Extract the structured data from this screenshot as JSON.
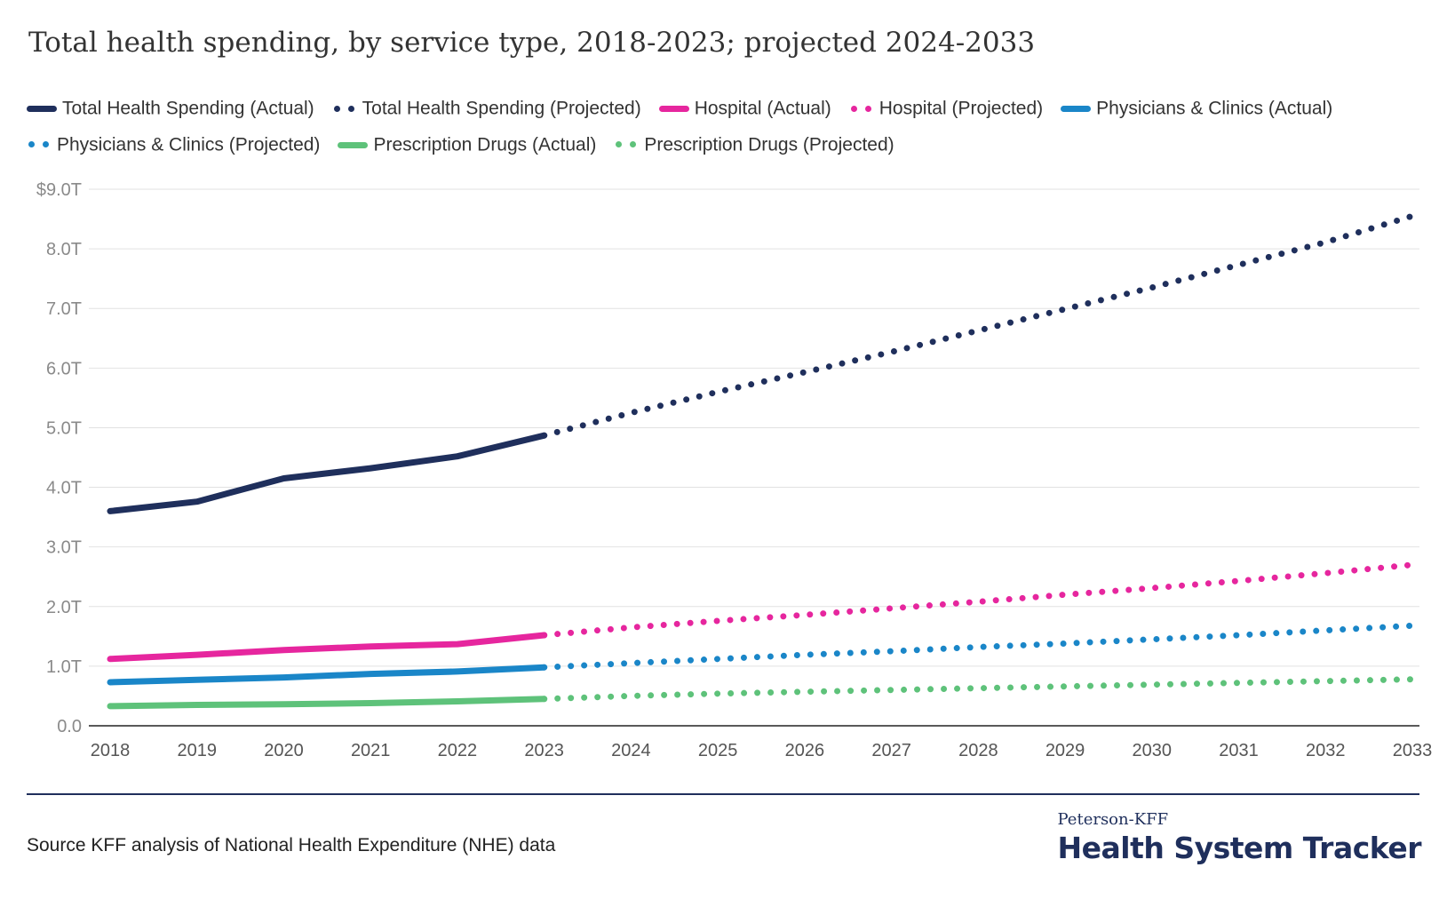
{
  "chart_data": {
    "type": "line",
    "title": "Total health spending, by service type, 2018-2023; projected 2024-2033",
    "x": [
      "2018",
      "2019",
      "2020",
      "2021",
      "2022",
      "2023",
      "2024",
      "2025",
      "2026",
      "2027",
      "2028",
      "2029",
      "2030",
      "2031",
      "2032",
      "2033"
    ],
    "y_ticks": [
      "0.0",
      "1.0T",
      "2.0T",
      "3.0T",
      "4.0T",
      "5.0T",
      "6.0T",
      "7.0T",
      "8.0T",
      "$9.0T"
    ],
    "ylim": [
      0,
      9
    ],
    "grid": true,
    "legend_position": "top",
    "series": [
      {
        "name": "Total Health Spending (Actual)",
        "color": "#1f2f5c",
        "style": "solid",
        "x": [
          "2018",
          "2019",
          "2020",
          "2021",
          "2022",
          "2023"
        ],
        "values": [
          3.6,
          3.76,
          4.15,
          4.32,
          4.52,
          4.87
        ]
      },
      {
        "name": "Total Health Spending (Projected)",
        "color": "#1f2f5c",
        "style": "dotted",
        "x": [
          "2023",
          "2024",
          "2025",
          "2026",
          "2027",
          "2028",
          "2029",
          "2030",
          "2031",
          "2032",
          "2033"
        ],
        "values": [
          4.87,
          5.25,
          5.6,
          5.93,
          6.27,
          6.63,
          6.99,
          7.35,
          7.73,
          8.11,
          8.55
        ]
      },
      {
        "name": "Hospital (Actual)",
        "color": "#e6269e",
        "style": "solid",
        "x": [
          "2018",
          "2019",
          "2020",
          "2021",
          "2022",
          "2023"
        ],
        "values": [
          1.12,
          1.19,
          1.27,
          1.33,
          1.37,
          1.52
        ]
      },
      {
        "name": "Hospital (Projected)",
        "color": "#e6269e",
        "style": "dotted",
        "x": [
          "2023",
          "2024",
          "2025",
          "2026",
          "2027",
          "2028",
          "2029",
          "2030",
          "2031",
          "2032",
          "2033"
        ],
        "values": [
          1.52,
          1.65,
          1.76,
          1.86,
          1.97,
          2.08,
          2.2,
          2.31,
          2.43,
          2.56,
          2.7
        ]
      },
      {
        "name": "Physicians & Clinics (Actual)",
        "color": "#1a86c8",
        "style": "solid",
        "x": [
          "2018",
          "2019",
          "2020",
          "2021",
          "2022",
          "2023"
        ],
        "values": [
          0.73,
          0.77,
          0.81,
          0.87,
          0.91,
          0.98
        ]
      },
      {
        "name": "Physicians & Clinics (Projected)",
        "color": "#1a86c8",
        "style": "dotted",
        "x": [
          "2023",
          "2024",
          "2025",
          "2026",
          "2027",
          "2028",
          "2029",
          "2030",
          "2031",
          "2032",
          "2033"
        ],
        "values": [
          0.98,
          1.05,
          1.12,
          1.19,
          1.25,
          1.32,
          1.38,
          1.45,
          1.52,
          1.6,
          1.68
        ]
      },
      {
        "name": "Prescription Drugs (Actual)",
        "color": "#5ec27a",
        "style": "solid",
        "x": [
          "2018",
          "2019",
          "2020",
          "2021",
          "2022",
          "2023"
        ],
        "values": [
          0.33,
          0.35,
          0.36,
          0.38,
          0.41,
          0.45
        ]
      },
      {
        "name": "Prescription Drugs (Projected)",
        "color": "#5ec27a",
        "style": "dotted",
        "x": [
          "2023",
          "2024",
          "2025",
          "2026",
          "2027",
          "2028",
          "2029",
          "2030",
          "2031",
          "2032",
          "2033"
        ],
        "values": [
          0.45,
          0.5,
          0.54,
          0.57,
          0.6,
          0.63,
          0.66,
          0.69,
          0.72,
          0.75,
          0.78
        ]
      }
    ]
  },
  "legend": [
    {
      "label": "Total Health Spending (Actual)",
      "color": "#1f2f5c",
      "style": "solid"
    },
    {
      "label": "Total Health Spending (Projected)",
      "color": "#1f2f5c",
      "style": "dotted"
    },
    {
      "label": "Hospital (Actual)",
      "color": "#e6269e",
      "style": "solid"
    },
    {
      "label": "Hospital (Projected)",
      "color": "#e6269e",
      "style": "dotted"
    },
    {
      "label": "Physicians & Clinics (Actual)",
      "color": "#1a86c8",
      "style": "solid"
    },
    {
      "label": "Physicians & Clinics (Projected)",
      "color": "#1a86c8",
      "style": "dotted"
    },
    {
      "label": "Prescription Drugs (Actual)",
      "color": "#5ec27a",
      "style": "solid"
    },
    {
      "label": "Prescription Drugs (Projected)",
      "color": "#5ec27a",
      "style": "dotted"
    }
  ],
  "footer": {
    "source": "Source KFF analysis of National Health Expenditure (NHE) data",
    "logo_top": "Peterson-KFF",
    "logo_main": "Health System Tracker"
  }
}
